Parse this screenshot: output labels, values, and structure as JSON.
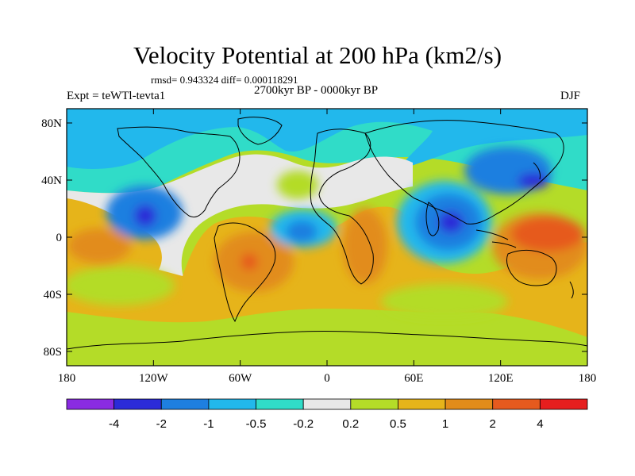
{
  "title": "Velocity Potential at 200 hPa (km2/s)",
  "stats": "rmsd= 0.943324 diff= 0.000118291",
  "subtitle": "2700kyr BP - 0000kyr BP",
  "experiment": "Expt = teWTl-tevta1",
  "season": "DJF",
  "axes": {
    "lon_ticks": [
      "180",
      "120W",
      "60W",
      "0",
      "60E",
      "120E",
      "180"
    ],
    "lat_ticks": [
      "80N",
      "40N",
      "0",
      "40S",
      "80S"
    ],
    "lon_range": [
      -180,
      180
    ],
    "lat_range": [
      -90,
      90
    ]
  },
  "colorbar": {
    "colors": [
      "#8a2be2",
      "#2b2bd8",
      "#1e7fe0",
      "#22b8ec",
      "#30dcc8",
      "#e8e8e8",
      "#b4dc28",
      "#e6b41a",
      "#e28c1a",
      "#e65a1e",
      "#e61e1e"
    ],
    "labels": [
      "-4",
      "-2",
      "-1",
      "-0.5",
      "-0.2",
      "0.2",
      "0.5",
      "1",
      "2",
      "4"
    ]
  },
  "chart_data": {
    "type": "heatmap",
    "projection": "cylindrical-equidistant",
    "field": "velocity potential difference",
    "units": "km2/s",
    "levels": [
      -4,
      -2,
      -1,
      -0.5,
      -0.2,
      0.2,
      0.5,
      1,
      2,
      4
    ],
    "blobs": [
      {
        "lon": -135,
        "lat": 18,
        "value": -2.5
      },
      {
        "lon": -130,
        "lat": 20,
        "value": -1.5
      },
      {
        "lon": -175,
        "lat": -10,
        "value": 0.8
      },
      {
        "lon": -157,
        "lat": -12,
        "value": 1.2
      },
      {
        "lon": -55,
        "lat": -22,
        "value": 1.5
      },
      {
        "lon": -58,
        "lat": -30,
        "value": 2.3
      },
      {
        "lon": -25,
        "lat": 5,
        "value": -0.8
      },
      {
        "lon": -20,
        "lat": 4,
        "value": -1.4
      },
      {
        "lon": 25,
        "lat": -20,
        "value": 1.5
      },
      {
        "lon": 90,
        "lat": 15,
        "value": -1.2
      },
      {
        "lon": 85,
        "lat": 2,
        "value": -2.3
      },
      {
        "lon": 120,
        "lat": 30,
        "value": -1.3
      },
      {
        "lon": 142,
        "lat": 40,
        "value": -2.2
      },
      {
        "lon": 150,
        "lat": 0,
        "value": 2.8
      },
      {
        "lon": 160,
        "lat": -10,
        "value": 1.4
      }
    ]
  }
}
